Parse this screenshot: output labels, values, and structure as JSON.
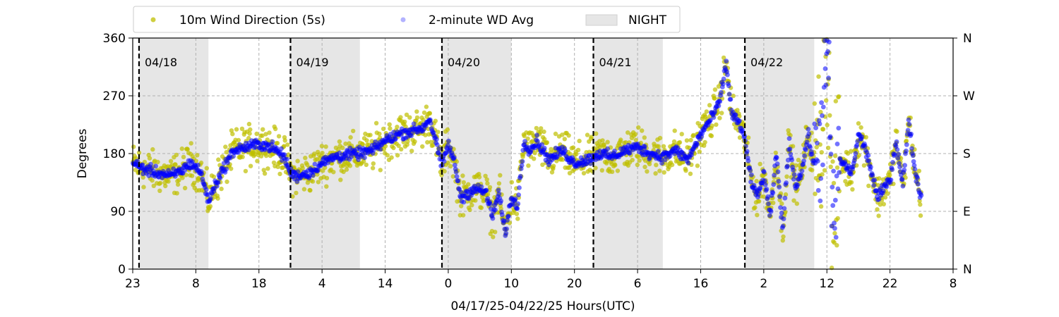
{
  "chart_data": {
    "type": "scatter",
    "xlabel": "04/17/25-04/22/25  Hours(UTC)",
    "ylabel": "Degrees",
    "ylim": [
      0,
      360
    ],
    "xlim_hours": [
      0,
      130
    ],
    "grid": true,
    "legend_placement": "top-left, above plot",
    "legend": [
      {
        "label": "10m Wind Direction (5s)",
        "color": "#bfbf00"
      },
      {
        "label": "2-minute WD Avg",
        "color": "#0000ff"
      },
      {
        "label": "NIGHT",
        "color": "#e6e6e6"
      }
    ],
    "x_tick_labels": [
      "23",
      "8",
      "18",
      "4",
      "14",
      "0",
      "10",
      "20",
      "6",
      "16",
      "2",
      "12",
      "22",
      "8"
    ],
    "y_tick_labels": [
      "0",
      "90",
      "180",
      "270",
      "360"
    ],
    "y2_tick_labels": [
      "N",
      "E",
      "S",
      "W",
      "N"
    ],
    "night_bands_hours": [
      [
        1,
        12
      ],
      [
        25,
        36
      ],
      [
        49,
        60
      ],
      [
        73,
        84
      ],
      [
        97,
        108
      ]
    ],
    "day_markers": [
      {
        "hour": 1,
        "label": "04/18"
      },
      {
        "hour": 25,
        "label": "04/19"
      },
      {
        "hour": 49,
        "label": "04/20"
      },
      {
        "hour": 73,
        "label": "04/21"
      },
      {
        "hour": 97,
        "label": "04/22"
      }
    ],
    "series": [
      {
        "name": "2-minute WD Avg",
        "color": "#0000ff",
        "hours": [
          0,
          2,
          4,
          6,
          8,
          9,
          10,
          11,
          12,
          13,
          14,
          16,
          18,
          20,
          22,
          24,
          25,
          26,
          28,
          30,
          32,
          34,
          36,
          38,
          40,
          42,
          44,
          46,
          47,
          48,
          49,
          50,
          51,
          52,
          54,
          56,
          57,
          58,
          59,
          60,
          61,
          62,
          63,
          64,
          66,
          68,
          70,
          72,
          74,
          76,
          78,
          80,
          82,
          84,
          86,
          88,
          89,
          90,
          92,
          93,
          94,
          95,
          96,
          97,
          98,
          99,
          100,
          101,
          102,
          103,
          104,
          105,
          106,
          107,
          108,
          109,
          110,
          111,
          112,
          113,
          114,
          115,
          116,
          117,
          118,
          120,
          121,
          122,
          123,
          124,
          125
        ],
        "degrees": [
          165,
          155,
          150,
          145,
          155,
          165,
          160,
          145,
          105,
          130,
          150,
          185,
          190,
          195,
          190,
          175,
          150,
          145,
          150,
          165,
          175,
          178,
          180,
          185,
          200,
          210,
          215,
          220,
          235,
          200,
          160,
          195,
          165,
          110,
          125,
          120,
          80,
          120,
          55,
          110,
          100,
          200,
          185,
          200,
          170,
          185,
          165,
          170,
          180,
          175,
          185,
          190,
          180,
          175,
          185,
          170,
          190,
          210,
          240,
          260,
          320,
          240,
          230,
          200,
          140,
          110,
          150,
          80,
          180,
          60,
          200,
          130,
          150,
          210,
          160,
          200,
          340,
          60,
          170,
          160,
          150,
          210,
          190,
          155,
          110,
          140,
          200,
          130,
          230,
          150,
          110
        ]
      }
    ]
  }
}
